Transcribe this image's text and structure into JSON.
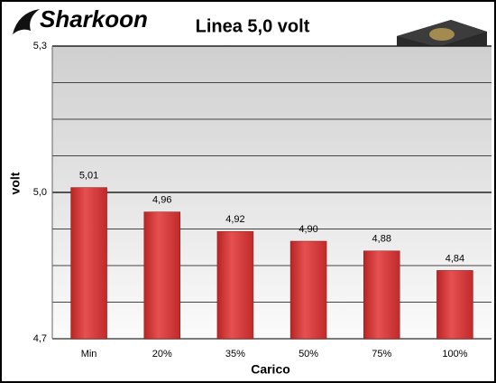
{
  "brand": "Sharkoon",
  "chart_data": {
    "type": "bar",
    "title": "Linea 5,0 volt",
    "y_label": "volt",
    "x_label": "Carico",
    "categories": [
      "Min",
      "20%",
      "35%",
      "50%",
      "75%",
      "100%"
    ],
    "values": [
      5.01,
      4.96,
      4.92,
      4.9,
      4.88,
      4.84
    ],
    "value_labels": [
      "5,01",
      "4,96",
      "4,92",
      "4,90",
      "4,88",
      "4,84"
    ],
    "color": "#d83a3a",
    "ylim": [
      4.7,
      5.3
    ],
    "yticks": [
      {
        "value": 4.7,
        "label": "4,7"
      },
      {
        "value": 5.0,
        "label": "5,0"
      },
      {
        "value": 5.3,
        "label": "5,3"
      }
    ],
    "minor_yticks": [
      4.775,
      4.85,
      4.925,
      5.075,
      5.15,
      5.225
    ],
    "grid": true
  }
}
